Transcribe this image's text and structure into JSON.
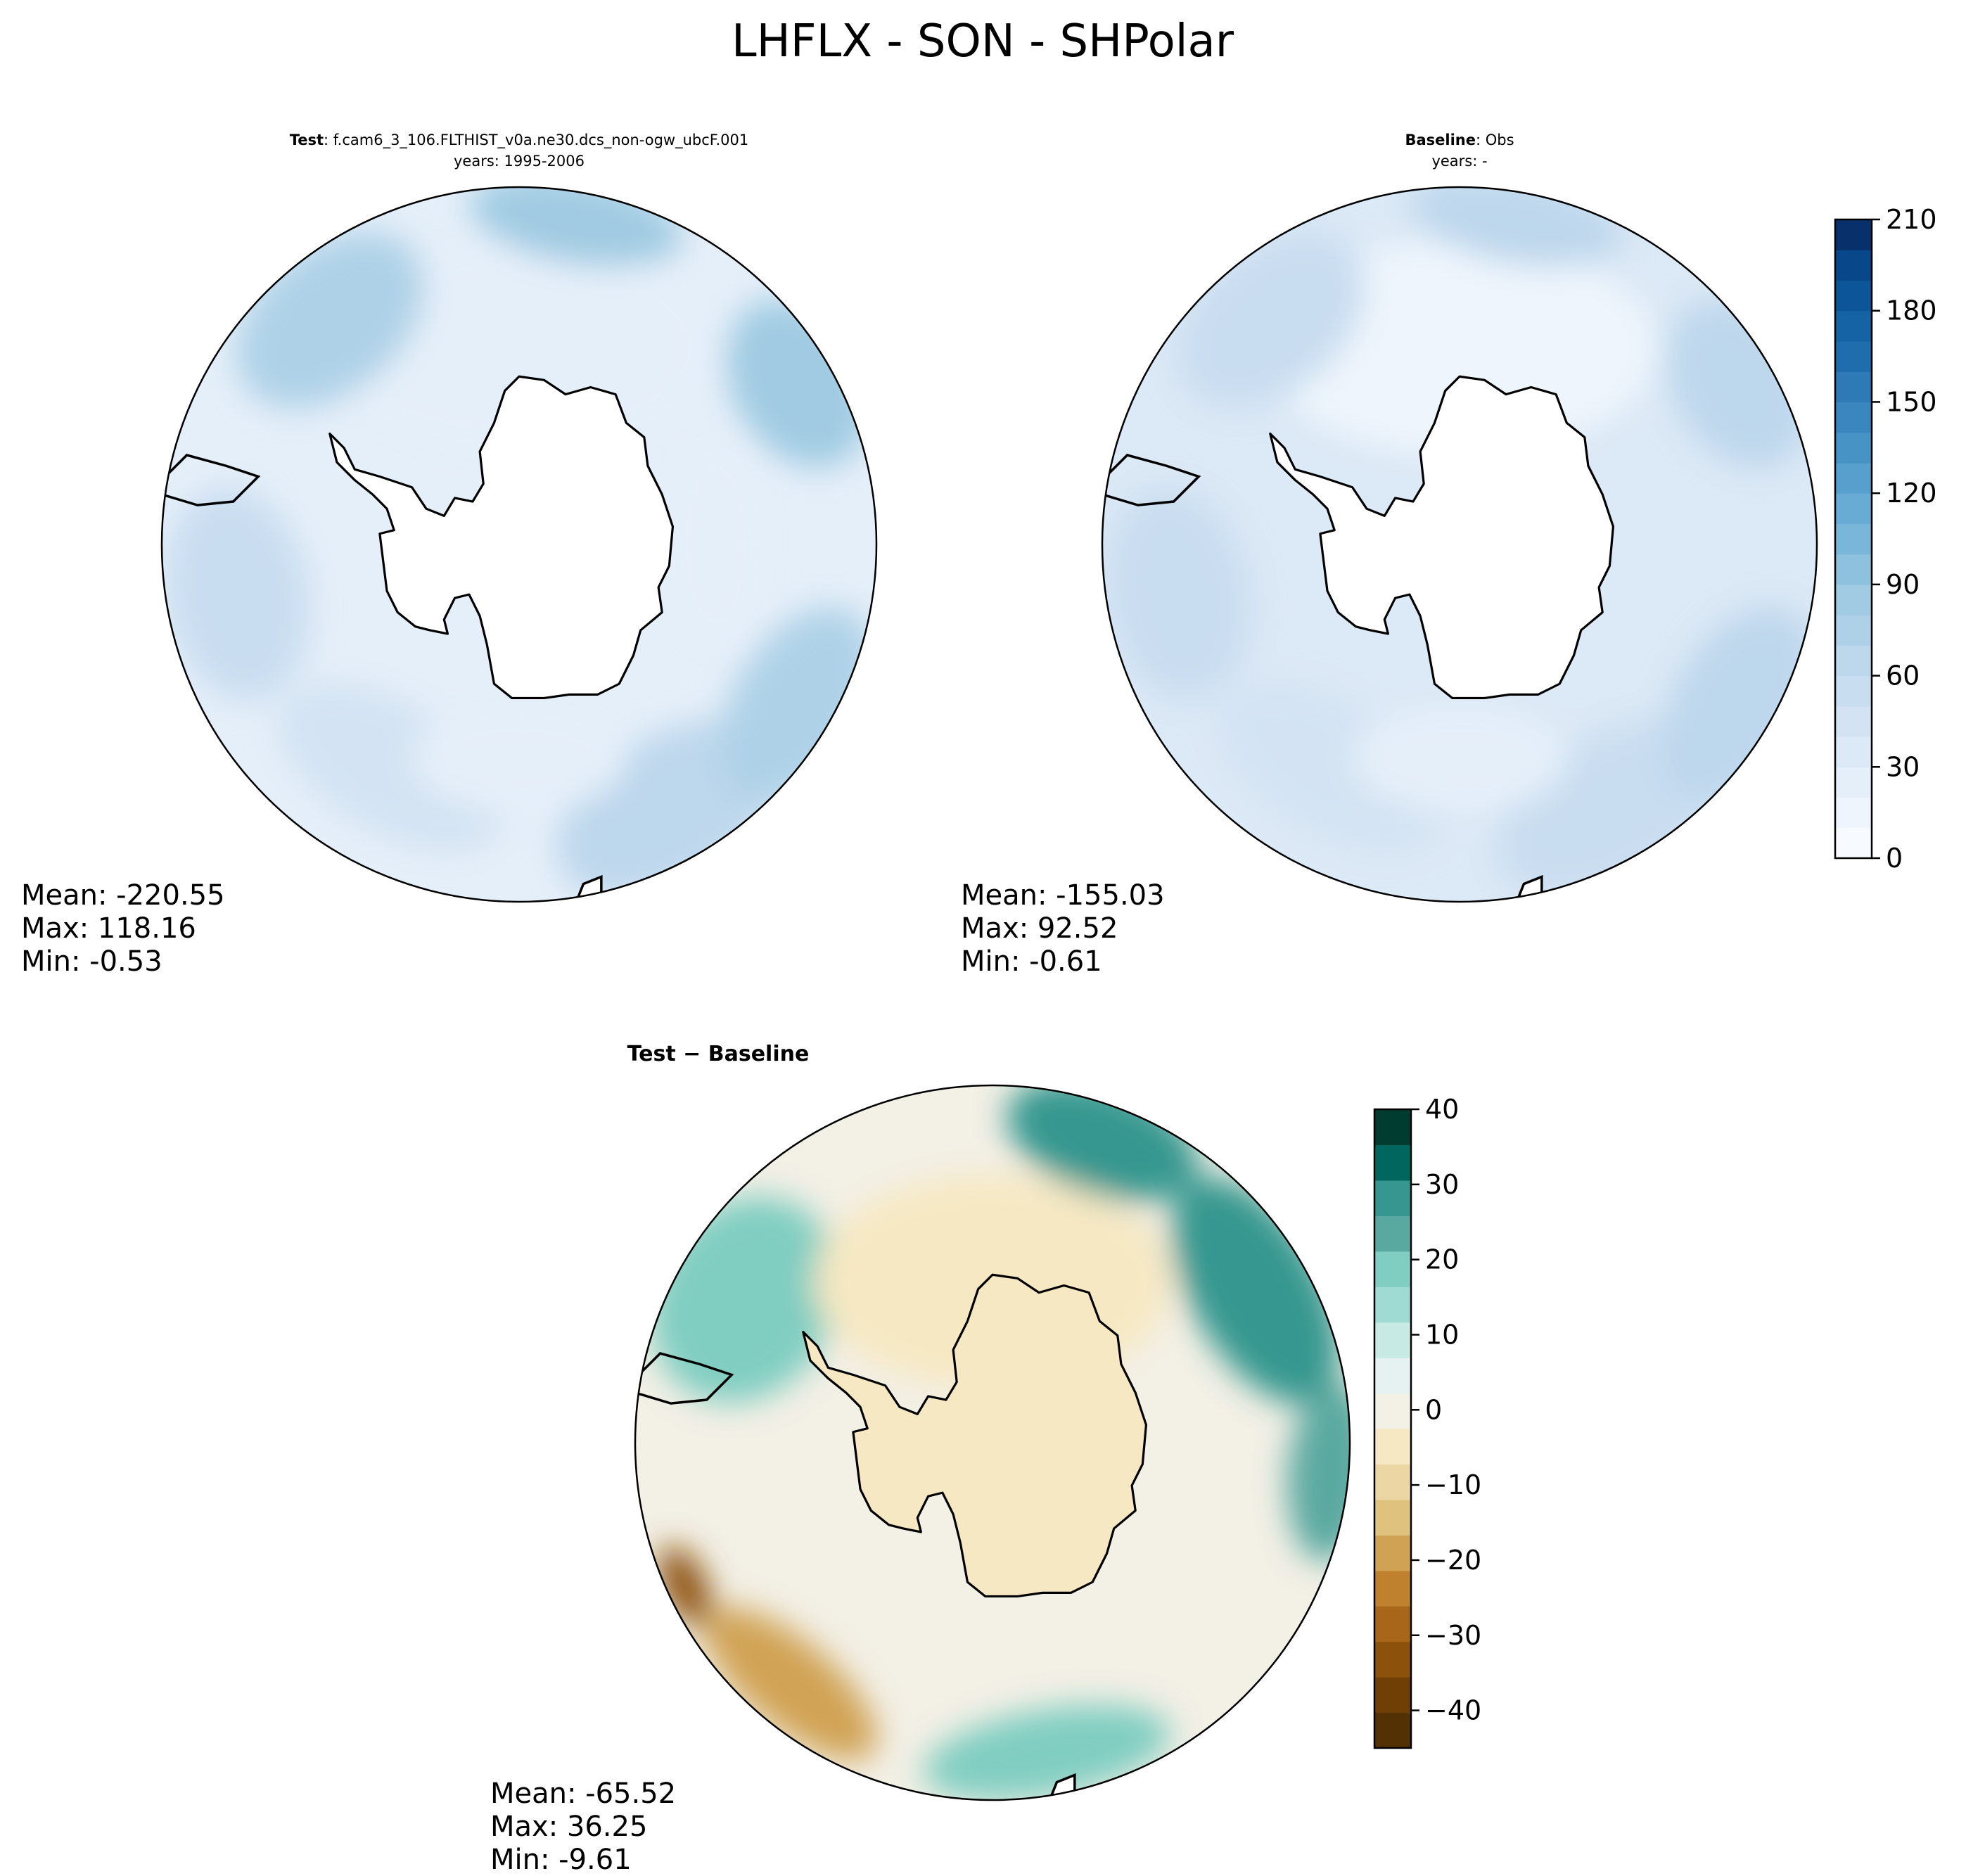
{
  "figure": {
    "title": "LHFLX - SON - SHPolar"
  },
  "panels": [
    {
      "id": "test",
      "title_bold": "Test",
      "title_rest": ": f.cam6_3_106.FLTHIST_v0a.ne30.dcs_non-ogw_ubcF.001",
      "subtitle": "years: 1995-2006",
      "stats": [
        "Mean: -220.55",
        "Max: 118.16",
        "Min: -0.53"
      ]
    },
    {
      "id": "baseline",
      "title_bold": "Baseline",
      "title_rest": ": Obs",
      "subtitle": "years: -",
      "stats": [
        "Mean: -155.03",
        "Max: 92.52",
        "Min: -0.61"
      ]
    },
    {
      "id": "diff",
      "title_bold": "Test − Baseline",
      "title_rest": "",
      "subtitle": "",
      "stats": [
        "Mean: -65.52",
        "Max: 36.25",
        "Min: -9.61"
      ]
    }
  ],
  "colorbars": {
    "main": {
      "ticks": [
        {
          "v": 0,
          "label": "0"
        },
        {
          "v": 30,
          "label": "30"
        },
        {
          "v": 60,
          "label": "60"
        },
        {
          "v": 90,
          "label": "90"
        },
        {
          "v": 120,
          "label": "120"
        },
        {
          "v": 150,
          "label": "150"
        },
        {
          "v": 180,
          "label": "180"
        },
        {
          "v": 210,
          "label": "210"
        }
      ],
      "range": [
        0,
        210
      ],
      "levels": 21,
      "colors": [
        "#f7fbff",
        "#eef5fc",
        "#e5eff9",
        "#dce9f6",
        "#d3e3f3",
        "#c9ddf0",
        "#bdd7ec",
        "#afd1e7",
        "#a0cbe2",
        "#8ec1de",
        "#7ab6d9",
        "#68abd4",
        "#579fcd",
        "#4893c6",
        "#3a87bf",
        "#2d7ab6",
        "#1f6dac",
        "#1562a4",
        "#0d5599",
        "#08488a",
        "#08306b"
      ]
    },
    "diff": {
      "ticks": [
        {
          "v": -40,
          "label": "−40"
        },
        {
          "v": -30,
          "label": "−30"
        },
        {
          "v": -20,
          "label": "−20"
        },
        {
          "v": -10,
          "label": "−10"
        },
        {
          "v": 0,
          "label": "0"
        },
        {
          "v": 10,
          "label": "10"
        },
        {
          "v": 20,
          "label": "20"
        },
        {
          "v": 30,
          "label": "30"
        },
        {
          "v": 40,
          "label": "40"
        }
      ],
      "range": [
        -45,
        40
      ],
      "levels": 17,
      "colors": [
        "#543005",
        "#6f3f06",
        "#8c510a",
        "#a8661a",
        "#bf812d",
        "#d0a354",
        "#dfc27d",
        "#ecd6a4",
        "#f6e8c3",
        "#f3f0e6",
        "#e6f2f1",
        "#c7eae5",
        "#9fdbd2",
        "#80cdc1",
        "#5aa9a0",
        "#35978f",
        "#01665e",
        "#003c30"
      ]
    }
  },
  "chart_data": [
    {
      "type": "heatmap",
      "projection": "south-polar-stereographic",
      "title": "Test: f.cam6_3_106.FLTHIST_v0a.ne30.dcs_non-ogw_ubcF.001",
      "subtitle": "years: 1995-2006",
      "variable": "LHFLX",
      "season": "SON",
      "region": "SHPolar",
      "colorbar_range": [
        0,
        210
      ],
      "stats": {
        "mean": -220.55,
        "max": 118.16,
        "min": -0.53
      },
      "field_blobs": [
        {
          "lon": 0,
          "colat": 0.55,
          "value": 20,
          "rx": 0.55,
          "ry": 0.3
        },
        {
          "lon": 150,
          "colat": 0.85,
          "value": 60,
          "rx": 0.35,
          "ry": 0.2
        },
        {
          "lon": 120,
          "colat": 0.9,
          "value": 75,
          "rx": 0.3,
          "ry": 0.18
        },
        {
          "lon": 60,
          "colat": 0.9,
          "value": 85,
          "rx": 0.25,
          "ry": 0.18
        },
        {
          "lon": 10,
          "colat": 0.92,
          "value": 85,
          "rx": 0.3,
          "ry": 0.12
        },
        {
          "lon": -40,
          "colat": 0.82,
          "value": 75,
          "rx": 0.3,
          "ry": 0.2
        },
        {
          "lon": -100,
          "colat": 0.8,
          "value": 55,
          "rx": 0.3,
          "ry": 0.2
        },
        {
          "lon": -150,
          "colat": 0.72,
          "value": 45,
          "rx": 0.35,
          "ry": 0.18
        },
        {
          "lon": 180,
          "colat": 0.6,
          "value": 25,
          "rx": 0.3,
          "ry": 0.15
        },
        {
          "lon": 90,
          "colat": 0.55,
          "value": 20,
          "rx": 0.3,
          "ry": 0.15
        }
      ]
    },
    {
      "type": "heatmap",
      "projection": "south-polar-stereographic",
      "title": "Baseline: Obs",
      "subtitle": "years: -",
      "variable": "LHFLX",
      "colorbar_range": [
        0,
        210
      ],
      "stats": {
        "mean": -155.03,
        "max": 92.52,
        "min": -0.61
      },
      "field_blobs": [
        {
          "lon": 0,
          "colat": 0.55,
          "value": 18,
          "rx": 0.55,
          "ry": 0.3
        },
        {
          "lon": 150,
          "colat": 0.85,
          "value": 55,
          "rx": 0.35,
          "ry": 0.2
        },
        {
          "lon": 120,
          "colat": 0.9,
          "value": 60,
          "rx": 0.3,
          "ry": 0.18
        },
        {
          "lon": 60,
          "colat": 0.9,
          "value": 62,
          "rx": 0.25,
          "ry": 0.18
        },
        {
          "lon": 10,
          "colat": 0.92,
          "value": 60,
          "rx": 0.3,
          "ry": 0.12
        },
        {
          "lon": -40,
          "colat": 0.82,
          "value": 58,
          "rx": 0.3,
          "ry": 0.2
        },
        {
          "lon": -100,
          "colat": 0.8,
          "value": 50,
          "rx": 0.3,
          "ry": 0.2
        },
        {
          "lon": -150,
          "colat": 0.72,
          "value": 45,
          "rx": 0.35,
          "ry": 0.18
        },
        {
          "lon": 180,
          "colat": 0.6,
          "value": 25,
          "rx": 0.3,
          "ry": 0.15
        }
      ]
    },
    {
      "type": "heatmap",
      "projection": "south-polar-stereographic",
      "title": "Test − Baseline",
      "variable": "LHFLX",
      "colorbar_range": [
        -45,
        40
      ],
      "stats": {
        "mean": -65.52,
        "max": 36.25,
        "min": -9.61
      },
      "field_blobs": [
        {
          "lon": 60,
          "colat": 0.85,
          "value": 30,
          "rx": 0.35,
          "ry": 0.18
        },
        {
          "lon": 20,
          "colat": 0.9,
          "value": 28,
          "rx": 0.28,
          "ry": 0.15
        },
        {
          "lon": 95,
          "colat": 0.95,
          "value": 22,
          "rx": 0.25,
          "ry": 0.12
        },
        {
          "lon": -60,
          "colat": 0.8,
          "value": 20,
          "rx": 0.3,
          "ry": 0.25
        },
        {
          "lon": 170,
          "colat": 0.88,
          "value": 18,
          "rx": 0.35,
          "ry": 0.12
        },
        {
          "lon": -140,
          "colat": 0.88,
          "value": -18,
          "rx": 0.3,
          "ry": 0.12
        },
        {
          "lon": -115,
          "colat": 0.95,
          "value": -35,
          "rx": 0.12,
          "ry": 0.06
        },
        {
          "lon": 0,
          "colat": 0.45,
          "value": -4,
          "rx": 0.5,
          "ry": 0.3
        }
      ]
    }
  ]
}
